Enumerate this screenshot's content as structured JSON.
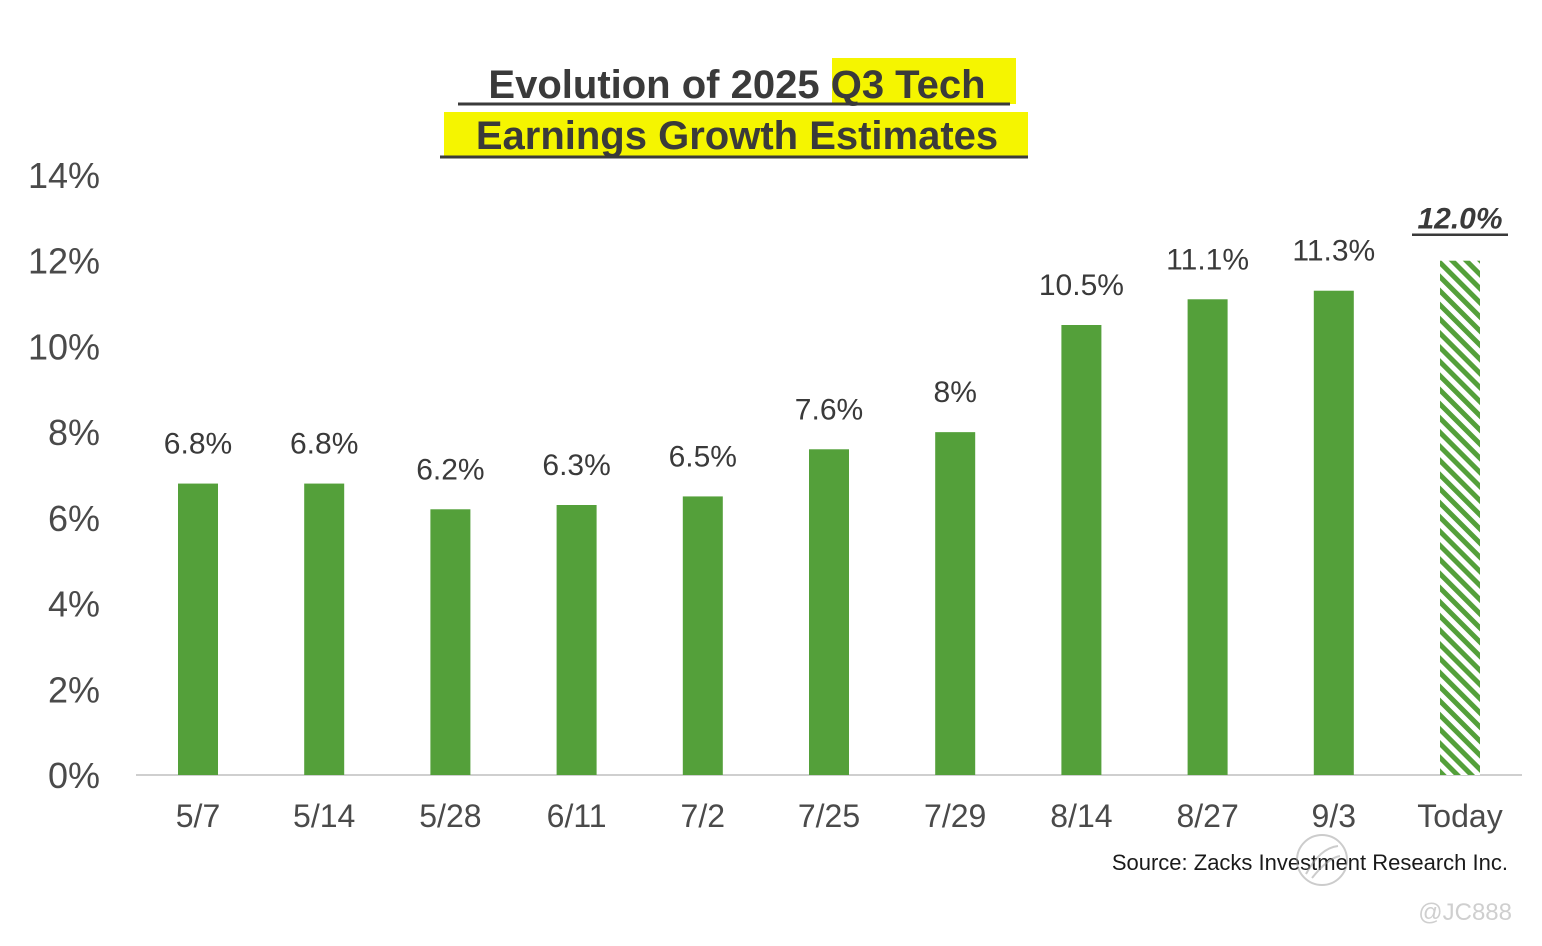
{
  "chart_data": {
    "type": "bar",
    "title_line1_plain": "Evolution of 2025 ",
    "title_line1_highlight": "Q3 Tech",
    "title_line2": "Earnings Growth Estimates",
    "categories": [
      "5/7",
      "5/14",
      "5/28",
      "6/11",
      "7/2",
      "7/25",
      "7/29",
      "8/14",
      "8/27",
      "9/3",
      "Today"
    ],
    "values": [
      6.8,
      6.8,
      6.2,
      6.3,
      6.5,
      7.6,
      8.0,
      10.5,
      11.1,
      11.3,
      12.0
    ],
    "value_labels": [
      "6.8%",
      "6.8%",
      "6.2%",
      "6.3%",
      "6.5%",
      "7.6%",
      "8%",
      "10.5%",
      "11.1%",
      "11.3%",
      "12.0%"
    ],
    "emphasized_last": true,
    "ylim": [
      0,
      14
    ],
    "yticks": [
      0,
      2,
      4,
      6,
      8,
      10,
      12,
      14
    ],
    "ytick_labels": [
      "0%",
      "2%",
      "4%",
      "6%",
      "8%",
      "10%",
      "12%",
      "14%"
    ],
    "xlabel": "",
    "ylabel": "",
    "grid": false,
    "legend": "none"
  },
  "colors": {
    "bar": "#54a03a",
    "bar_hatch_bg": "#ffffff",
    "highlight": "#f5f500",
    "axis": "#cfcfcf",
    "title": "#3a3a3a"
  },
  "source": "Source: Zacks Investment Research Inc.",
  "watermark": "@JC888",
  "watermark_icon": "snowball-logo-icon"
}
